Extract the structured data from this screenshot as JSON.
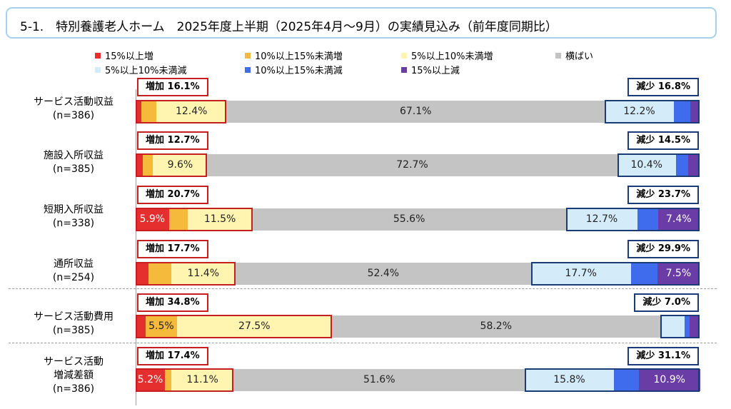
{
  "title": "5-1.　特別養護老人ホーム　2025年度上半期（2025年4月〜9月）の実績見込み（前年度同期比）",
  "chart_data": {
    "type": "bar",
    "stacked": true,
    "horizontal": true,
    "xlim": [
      0,
      100
    ],
    "legend": [
      {
        "name": "15%以上増",
        "color": "#e52e2e"
      },
      {
        "name": "10%以上15%未満増",
        "color": "#f5b93c"
      },
      {
        "name": "5%以上10%未満増",
        "color": "#fff5b0"
      },
      {
        "name": "横ばい",
        "color": "#c4c4c4"
      },
      {
        "name": "5%以上10%未満減",
        "color": "#d4ebfa"
      },
      {
        "name": "10%以上15%未満減",
        "color": "#3f6cec"
      },
      {
        "name": "15%以上減",
        "color": "#6a3ca6"
      }
    ],
    "categories": [
      {
        "label_line1": "サービス活動収益",
        "label_line2": "(n=386)",
        "increase_tag": "増加 16.1%",
        "decrease_tag": "減少 16.8%",
        "values": [
          1.0,
          2.7,
          12.4,
          67.1,
          12.2,
          3.0,
          1.6
        ],
        "labels": [
          "",
          "",
          "12.4%",
          "67.1%",
          "12.2%",
          "",
          ""
        ]
      },
      {
        "label_line1": "施設入所収益",
        "label_line2": "(n=385)",
        "increase_tag": "増加 12.7%",
        "decrease_tag": "減少 14.5%",
        "values": [
          1.3,
          1.8,
          9.6,
          72.7,
          10.4,
          2.2,
          1.9
        ],
        "labels": [
          "",
          "",
          "9.6%",
          "72.7%",
          "10.4%",
          "",
          ""
        ]
      },
      {
        "label_line1": "短期入所収益",
        "label_line2": "(n=338)",
        "increase_tag": "増加 20.7%",
        "decrease_tag": "減少 23.7%",
        "values": [
          5.9,
          3.3,
          11.5,
          55.6,
          12.7,
          3.6,
          7.4
        ],
        "labels": [
          "5.9%",
          "",
          "11.5%",
          "55.6%",
          "12.7%",
          "",
          "7.4%"
        ]
      },
      {
        "label_line1": "通所収益",
        "label_line2": "(n=254)",
        "increase_tag": "増加 17.7%",
        "decrease_tag": "減少 29.9%",
        "values": [
          2.3,
          4.0,
          11.4,
          52.4,
          17.7,
          4.7,
          7.5
        ],
        "labels": [
          "",
          "",
          "11.4%",
          "52.4%",
          "17.7%",
          "",
          "7.5%"
        ]
      },
      {
        "label_line1": "サービス活動費用",
        "label_line2": "(n=385)",
        "increase_tag": "増加 34.8%",
        "decrease_tag": "減少 7.0%",
        "values": [
          1.8,
          5.5,
          27.5,
          58.2,
          4.4,
          0.8,
          1.8
        ],
        "labels": [
          "",
          "5.5%",
          "27.5%",
          "58.2%",
          "",
          "",
          ""
        ]
      },
      {
        "label_line1": "サービス活動",
        "label_line2": "増減差額",
        "label_line3": "(n=386)",
        "increase_tag": "増加 17.4%",
        "decrease_tag": "減少 31.1%",
        "values": [
          5.2,
          1.1,
          11.1,
          51.6,
          15.8,
          4.4,
          10.9
        ],
        "labels": [
          "5.2%",
          "",
          "11.1%",
          "51.6%",
          "15.8%",
          "",
          "10.9%"
        ]
      }
    ]
  }
}
